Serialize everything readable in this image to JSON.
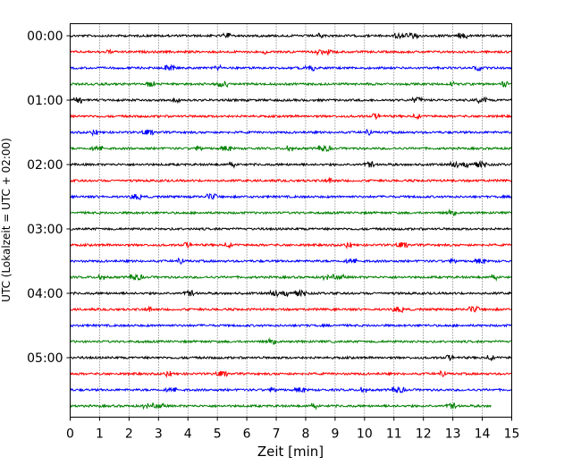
{
  "chart_data": {
    "type": "line",
    "title": "",
    "xlabel": "Zeit  [min]",
    "ylabel": "UTC (Lokalzeit = UTC + 02:00)",
    "xlim": [
      0,
      15
    ],
    "x_ticks": [
      "0",
      "1",
      "2",
      "3",
      "4",
      "5",
      "6",
      "7",
      "8",
      "9",
      "10",
      "11",
      "12",
      "13",
      "14",
      "15"
    ],
    "y_tick_labels": [
      "00:00",
      "01:00",
      "02:00",
      "03:00",
      "04:00",
      "05:00"
    ],
    "grid": "x-dotted",
    "trace_minutes_per_row": 15,
    "trace_count": 24,
    "trace_start": "00:00",
    "last_trace_end_min": 14.3,
    "trace_colors": [
      "#000000",
      "#ff0000",
      "#0000ff",
      "#008000"
    ]
  }
}
